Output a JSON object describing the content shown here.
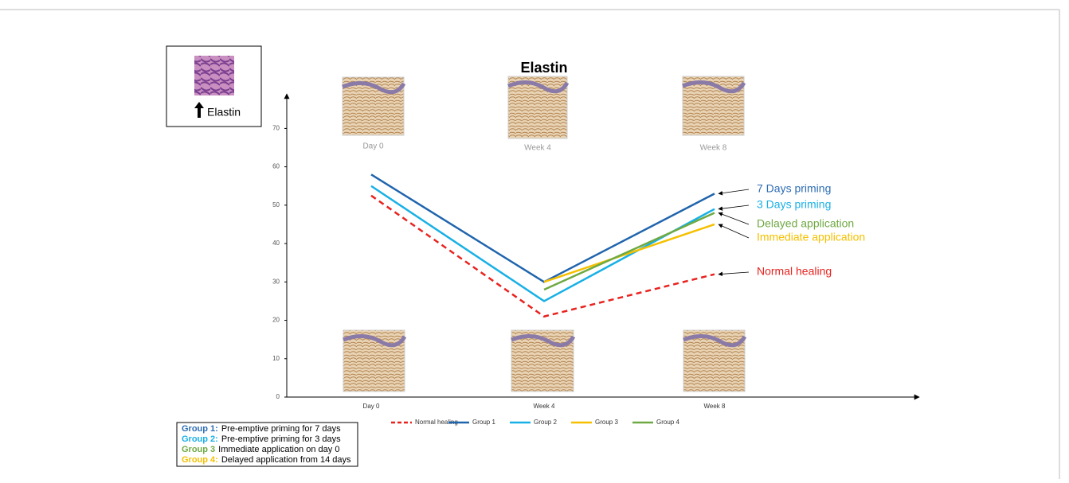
{
  "chart_data": {
    "type": "line",
    "title": "Elastin",
    "categories": [
      "Day 0",
      "Week 4",
      "Week 8"
    ],
    "series": [
      {
        "name": "Normal healing",
        "color": "#e8231f",
        "dashed": true,
        "values": [
          52.5,
          21,
          32
        ]
      },
      {
        "name": "Group 1",
        "color": "#1f64ad",
        "values": [
          58,
          30,
          53
        ]
      },
      {
        "name": "Group 2",
        "color": "#18b0e6",
        "values": [
          55,
          25,
          49
        ]
      },
      {
        "name": "Group 3",
        "color": "#f5c000",
        "values": [
          null,
          30,
          45
        ]
      },
      {
        "name": "Group 4",
        "color": "#6fa943",
        "values": [
          null,
          28,
          48
        ]
      }
    ],
    "ylim": [
      0,
      79
    ],
    "yticks": [
      0,
      10,
      20,
      30,
      40,
      50,
      60,
      70
    ],
    "image_labels": [
      "Day 0",
      "Week 4",
      "Week 8"
    ],
    "annotations": [
      {
        "text": "7 Days priming",
        "color": "#2e6db4"
      },
      {
        "text": "3 Days priming",
        "color": "#1ab0e6"
      },
      {
        "text": "Delayed application",
        "color": "#6fa943"
      },
      {
        "text": "Immediate application",
        "color": "#f5c000"
      },
      {
        "text": "Normal healing",
        "color": "#e8231f"
      }
    ]
  },
  "inset": {
    "label": "Elastin"
  },
  "key": [
    {
      "group": "Group 1:",
      "color": "#2e6db4",
      "text": "Pre-emptive priming for 7 days"
    },
    {
      "group": "Group 2:",
      "color": "#1ab0e6",
      "text": "Pre-emptive priming for 3 days"
    },
    {
      "group": "Group 3",
      "color": "#6fa943",
      "text": "Immediate application on day 0"
    },
    {
      "group": "Group 4:",
      "color": "#f5c000",
      "text": "Delayed application from 14 days"
    }
  ]
}
